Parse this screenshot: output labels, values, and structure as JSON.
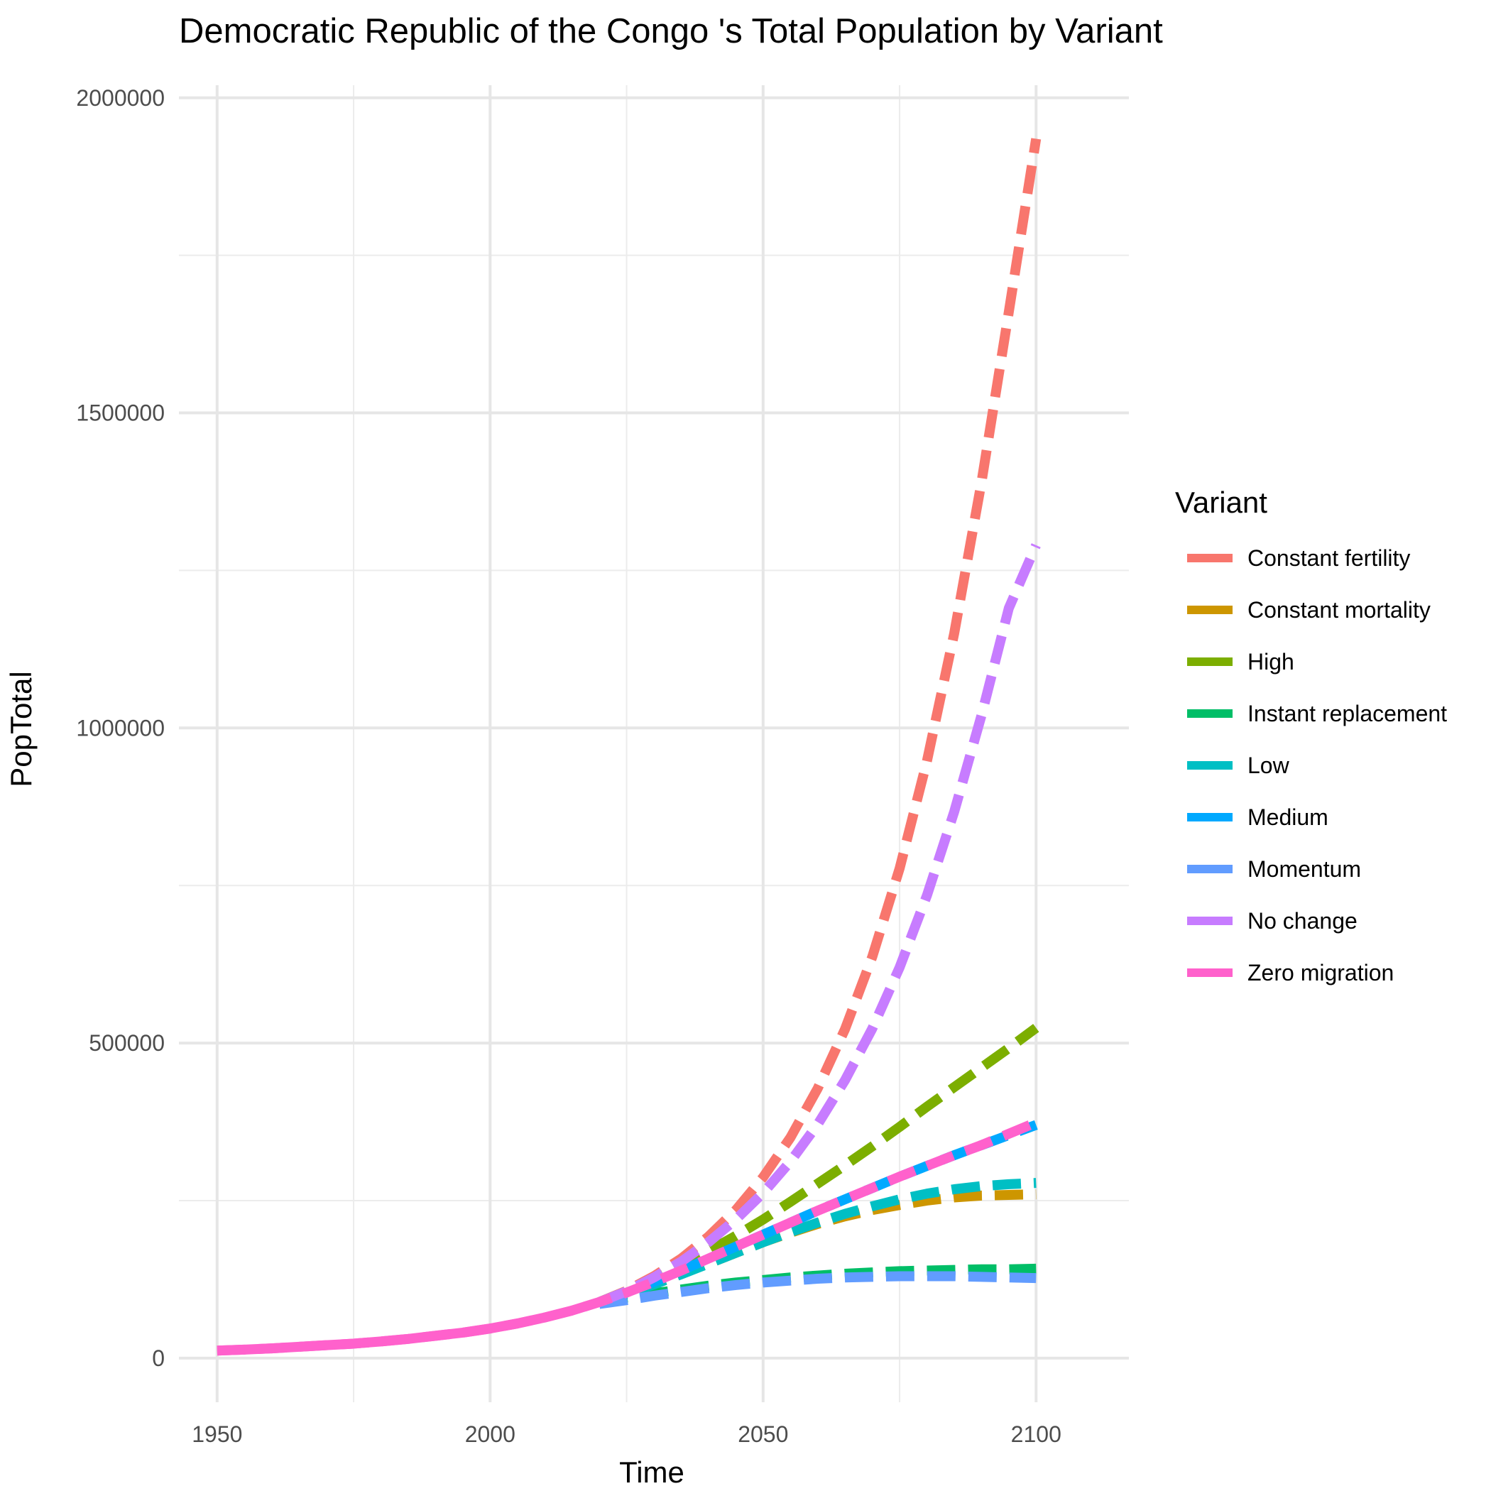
{
  "chart_data": {
    "type": "line",
    "title": "Democratic Republic of the Congo 's Total Population by Variant",
    "xlabel": "Time",
    "ylabel": "PopTotal",
    "xlim": [
      1943,
      2117
    ],
    "ylim": [
      -70000,
      2020000
    ],
    "x_major_ticks": [
      1950,
      2000,
      2050,
      2100
    ],
    "x_minor_ticks": [
      1975,
      2025,
      2075
    ],
    "y_major_ticks": [
      0,
      500000,
      1000000,
      1500000,
      2000000
    ],
    "y_minor_ticks": [
      250000,
      750000,
      1250000,
      1750000
    ],
    "x_tick_labels": [
      "1950",
      "2000",
      "2050",
      "2100"
    ],
    "y_tick_labels": [
      "0",
      "500000",
      "1000000",
      "1500000",
      "2000000"
    ],
    "grid": true,
    "legend_position": "right",
    "legend_title": "Variant",
    "series": [
      {
        "name": "Constant fertility",
        "color": "#F8766D",
        "x": [
          2020,
          2025,
          2030,
          2035,
          2040,
          2045,
          2050,
          2055,
          2060,
          2065,
          2070,
          2075,
          2080,
          2085,
          2090,
          2095,
          2100
        ],
        "y": [
          89000,
          107000,
          130000,
          158000,
          193000,
          235000,
          287000,
          350000,
          428000,
          522000,
          637000,
          777000,
          947000,
          1150000,
          1390000,
          1660000,
          1935000
        ]
      },
      {
        "name": "Constant mortality",
        "color": "#CD9600",
        "x": [
          2020,
          2025,
          2030,
          2035,
          2040,
          2045,
          2050,
          2055,
          2060,
          2065,
          2070,
          2075,
          2080,
          2085,
          2090,
          2095,
          2100
        ],
        "y": [
          89000,
          103000,
          118000,
          134000,
          150000,
          167000,
          184000,
          199000,
          213000,
          225000,
          235000,
          243000,
          250000,
          255000,
          258000,
          259000,
          260000
        ]
      },
      {
        "name": "High",
        "color": "#7CAE00",
        "x": [
          2020,
          2025,
          2030,
          2035,
          2040,
          2045,
          2050,
          2055,
          2060,
          2065,
          2070,
          2075,
          2080,
          2085,
          2090,
          2095,
          2100
        ],
        "y": [
          89000,
          106000,
          126000,
          147000,
          170000,
          194000,
          220000,
          248000,
          277000,
          306000,
          336000,
          367000,
          399000,
          430000,
          461000,
          492000,
          524000
        ]
      },
      {
        "name": "Instant replacement",
        "color": "#00BE67",
        "x": [
          2020,
          2025,
          2030,
          2035,
          2040,
          2045,
          2050,
          2055,
          2060,
          2065,
          2070,
          2075,
          2080,
          2085,
          2090,
          2095,
          2100
        ],
        "y": [
          89000,
          96000,
          103000,
          109000,
          115000,
          120000,
          124000,
          128000,
          131000,
          134000,
          136000,
          138000,
          139000,
          140000,
          141000,
          141000,
          142000
        ]
      },
      {
        "name": "Low",
        "color": "#00BFC4",
        "x": [
          2020,
          2025,
          2030,
          2035,
          2040,
          2045,
          2050,
          2055,
          2060,
          2065,
          2070,
          2075,
          2080,
          2085,
          2090,
          2095,
          2100
        ],
        "y": [
          89000,
          102000,
          117000,
          133000,
          150000,
          167000,
          184000,
          200000,
          215000,
          229000,
          241000,
          252000,
          261000,
          268000,
          273000,
          276000,
          278000
        ]
      },
      {
        "name": "Medium",
        "color": "#00A9FF",
        "x": [
          2020,
          2025,
          2030,
          2035,
          2040,
          2045,
          2050,
          2055,
          2060,
          2065,
          2070,
          2075,
          2080,
          2085,
          2090,
          2095,
          2100
        ],
        "y": [
          89000,
          104000,
          121000,
          139000,
          158000,
          177000,
          196000,
          215000,
          234000,
          252000,
          270000,
          288000,
          305000,
          322000,
          338000,
          354000,
          370000
        ]
      },
      {
        "name": "Momentum",
        "color": "#619CFF",
        "x": [
          2020,
          2025,
          2030,
          2035,
          2040,
          2045,
          2050,
          2055,
          2060,
          2065,
          2070,
          2075,
          2080,
          2085,
          2090,
          2095,
          2100
        ],
        "y": [
          86000,
          92000,
          99000,
          105000,
          111000,
          116000,
          120000,
          123000,
          126000,
          128000,
          129000,
          130000,
          130000,
          130000,
          129000,
          128000,
          127000
        ]
      },
      {
        "name": "No change",
        "color": "#C77CFF",
        "x": [
          2020,
          2025,
          2030,
          2035,
          2040,
          2045,
          2050,
          2055,
          2060,
          2065,
          2070,
          2075,
          2080,
          2085,
          2090,
          2095,
          2100
        ],
        "y": [
          89000,
          106000,
          128000,
          153000,
          184000,
          220000,
          262000,
          312000,
          371000,
          441000,
          523000,
          620000,
          734000,
          867000,
          1020000,
          1190000,
          1290000
        ]
      },
      {
        "name": "Zero migration",
        "color": "#FF61CC",
        "x": [
          1950,
          1955,
          1960,
          1965,
          1970,
          1975,
          1980,
          1985,
          1990,
          1995,
          2000,
          2005,
          2010,
          2015,
          2020,
          2025,
          2030,
          2035,
          2040,
          2045,
          2050,
          2055,
          2060,
          2065,
          2070,
          2075,
          2080,
          2085,
          2090,
          2095,
          2100
        ],
        "y": [
          12000,
          13500,
          15500,
          18000,
          20500,
          23000,
          26500,
          30500,
          35500,
          40500,
          47000,
          55000,
          64500,
          75500,
          89000,
          104000,
          121000,
          139000,
          158000,
          177000,
          196000,
          215000,
          234000,
          252000,
          270000,
          288000,
          305000,
          322000,
          338000,
          356000,
          374000
        ]
      }
    ]
  }
}
